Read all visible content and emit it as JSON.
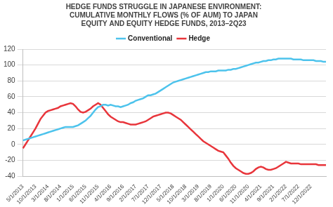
{
  "chart_data": {
    "type": "line",
    "title": [
      "HEDGE FUNDS STRUGGLE IN JAPANESE ENVIRONMENT:",
      "CUMULATIVE MONTHLY FLOWS (% OF AUM) TO JAPAN",
      "EQUITY AND EQUITY HEDGE FUNDS, 2013–2Q23"
    ],
    "categories": [
      "5/1/2013",
      null,
      null,
      null,
      null,
      "10/1/2013",
      null,
      null,
      null,
      null,
      "3/1/2014",
      null,
      null,
      null,
      null,
      "8/1/2014",
      null,
      null,
      null,
      null,
      "1/1/2015",
      null,
      null,
      null,
      null,
      "6/1/2015",
      null,
      null,
      null,
      null,
      "11/1/2015",
      null,
      null,
      null,
      null,
      "4/1/2016",
      null,
      null,
      null,
      null,
      "9/1/2016",
      null,
      null,
      null,
      null,
      "2/1/2017",
      null,
      null,
      null,
      null,
      "7/1/2017",
      null,
      null,
      null,
      null,
      "12/1/2017",
      null,
      null,
      null,
      null,
      "5/1/2018",
      null,
      null,
      null,
      null,
      "10/1/2018",
      null,
      null,
      null,
      null,
      "3/1/2019",
      null,
      null,
      null,
      null,
      "8/1/2019",
      null,
      null,
      null,
      null,
      "1/1/2020",
      null,
      null,
      null,
      null,
      "6/1/2020",
      null,
      null,
      null,
      null,
      "11/1/2020",
      null,
      null,
      null,
      null,
      "4/1/2021",
      null,
      null,
      null,
      null,
      "9/1/2021",
      null,
      null,
      null,
      null,
      "2/1/2022",
      null,
      null,
      null,
      null,
      "7/1/2022",
      null,
      null,
      null,
      null,
      "12/1/2022",
      null,
      null,
      null,
      null,
      null,
      null
    ],
    "series": [
      {
        "name": "Conventional",
        "color": "#4dc3ec",
        "values": [
          5,
          6,
          7,
          8,
          9,
          10,
          11,
          12,
          13,
          14,
          15,
          16,
          17,
          18,
          19,
          20,
          21,
          22,
          22,
          22,
          22,
          23,
          24,
          26,
          28,
          30,
          33,
          36,
          40,
          44,
          47,
          48,
          50,
          50,
          49,
          50,
          49,
          48,
          48,
          47,
          48,
          49,
          50,
          52,
          53,
          55,
          56,
          57,
          58,
          60,
          62,
          62,
          63,
          64,
          66,
          68,
          70,
          72,
          74,
          76,
          78,
          79,
          80,
          81,
          82,
          83,
          84,
          85,
          86,
          87,
          88,
          89,
          90,
          91,
          91,
          92,
          92,
          92,
          93,
          93,
          93,
          93,
          94,
          94,
          95,
          95,
          96,
          97,
          98,
          99,
          100,
          101,
          102,
          103,
          103,
          104,
          105,
          105,
          106,
          106,
          107,
          107,
          108,
          108,
          108,
          108,
          108,
          108,
          107,
          107,
          107,
          107,
          106,
          106,
          106,
          106,
          106,
          105,
          105,
          105,
          104,
          104
        ]
      },
      {
        "name": "Hedge",
        "color": "#e8353b",
        "values": [
          -5,
          0,
          5,
          10,
          15,
          20,
          26,
          32,
          36,
          40,
          42,
          43,
          44,
          45,
          46,
          48,
          49,
          50,
          51,
          52,
          51,
          48,
          44,
          41,
          40,
          41,
          43,
          45,
          48,
          50,
          52,
          50,
          46,
          42,
          38,
          35,
          33,
          31,
          29,
          28,
          28,
          27,
          26,
          25,
          25,
          25,
          26,
          27,
          28,
          29,
          31,
          33,
          35,
          36,
          37,
          38,
          39,
          40,
          40,
          39,
          37,
          35,
          33,
          31,
          28,
          25,
          22,
          19,
          16,
          13,
          10,
          7,
          4,
          2,
          0,
          -2,
          -4,
          -6,
          -8,
          -9,
          -10,
          -14,
          -18,
          -23,
          -27,
          -30,
          -32,
          -34,
          -36,
          -37,
          -37,
          -36,
          -34,
          -31,
          -29,
          -28,
          -29,
          -31,
          -32,
          -32,
          -31,
          -30,
          -28,
          -26,
          -24,
          -22,
          -23,
          -24,
          -24,
          -24,
          -24,
          -25,
          -25,
          -25,
          -25,
          -25,
          -25,
          -25,
          -26,
          -26,
          -26,
          -26
        ]
      }
    ],
    "ylim": [
      -40,
      120
    ],
    "yticks": [
      -40,
      -20,
      0,
      20,
      40,
      60,
      80,
      100,
      120
    ],
    "grid": true,
    "legend": "top"
  }
}
